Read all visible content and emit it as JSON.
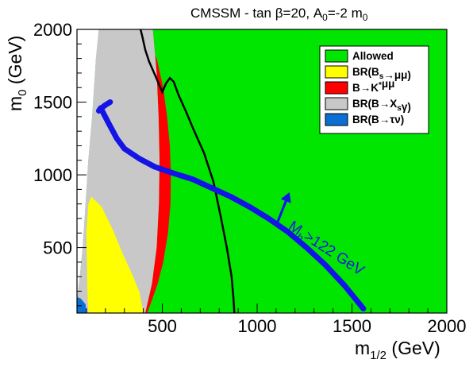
{
  "chart_data": {
    "type": "area",
    "title": {
      "pre": "CMSSM - tan ",
      "beta": "β",
      "mid": "=20, A",
      "a_sub": "0",
      "post": "=-2 m",
      "m_sub": "0"
    },
    "xlabel": {
      "base": "m",
      "sub": "1/2",
      "unit": " (GeV)"
    },
    "ylabel": {
      "base": "m",
      "sub": "0",
      "unit": " (GeV)"
    },
    "xlim": [
      50,
      2000
    ],
    "ylim": [
      50,
      2000
    ],
    "xticks": [
      500,
      1000,
      1500,
      2000
    ],
    "xtick_labels": [
      "500",
      "1000",
      "1500",
      "2000"
    ],
    "yticks": [
      500,
      1000,
      1500,
      2000
    ],
    "ytick_labels": [
      "500",
      "1000",
      "1500",
      "2000"
    ],
    "legend_position": "top-right",
    "legend": [
      {
        "id": "allowed",
        "parts": [
          {
            "t": "Allowed"
          }
        ],
        "color": "#00e600"
      },
      {
        "id": "bsmumu",
        "parts": [
          {
            "t": "BR(B"
          },
          {
            "t": "s",
            "sub": true
          },
          {
            "t": "→μμ)"
          }
        ],
        "color": "#ffff00"
      },
      {
        "id": "bkmumu",
        "parts": [
          {
            "t": "B→K"
          },
          {
            "t": "*",
            "sup": true
          },
          {
            "t": "μμ"
          }
        ],
        "color": "#ff0000"
      },
      {
        "id": "bxsgamma",
        "parts": [
          {
            "t": "BR(B→X"
          },
          {
            "t": "s",
            "sub": true
          },
          {
            "t": "γ)"
          }
        ],
        "color": "#c8c8c8"
      },
      {
        "id": "btaunu",
        "parts": [
          {
            "t": "BR(B→τν)"
          }
        ],
        "color": "#0a6ed2"
      }
    ],
    "regions": {
      "excluded_white": [
        [
          50,
          2000
        ],
        [
          165,
          2000
        ],
        [
          150,
          1800
        ],
        [
          130,
          1400
        ],
        [
          110,
          1100
        ],
        [
          95,
          800
        ],
        [
          80,
          500
        ],
        [
          65,
          300
        ],
        [
          50,
          150
        ]
      ],
      "bxsgamma": [
        [
          165,
          2000
        ],
        [
          450,
          2000
        ],
        [
          470,
          1700
        ],
        [
          480,
          1400
        ],
        [
          485,
          1100
        ],
        [
          482,
          800
        ],
        [
          470,
          500
        ],
        [
          445,
          250
        ],
        [
          410,
          50
        ],
        [
          50,
          50
        ],
        [
          50,
          150
        ],
        [
          65,
          300
        ],
        [
          80,
          500
        ],
        [
          95,
          800
        ],
        [
          110,
          1100
        ],
        [
          130,
          1400
        ],
        [
          150,
          1800
        ]
      ],
      "bkmumu_band": {
        "outer": [
          [
            395,
            2000
          ],
          [
            420,
            1950
          ],
          [
            470,
            1800
          ],
          [
            505,
            1600
          ],
          [
            525,
            1400
          ],
          [
            540,
            1200
          ],
          [
            545,
            1000
          ],
          [
            543,
            800
          ],
          [
            530,
            600
          ],
          [
            505,
            400
          ],
          [
            475,
            250
          ],
          [
            440,
            120
          ],
          [
            420,
            50
          ]
        ],
        "inner": [
          [
            410,
            50
          ],
          [
            445,
            250
          ],
          [
            470,
            500
          ],
          [
            482,
            800
          ],
          [
            485,
            1100
          ],
          [
            480,
            1400
          ],
          [
            470,
            1700
          ],
          [
            450,
            2000
          ]
        ]
      },
      "bsmumu": [
        [
          125,
          850
        ],
        [
          180,
          780
        ],
        [
          240,
          620
        ],
        [
          290,
          460
        ],
        [
          340,
          320
        ],
        [
          380,
          190
        ],
        [
          400,
          50
        ],
        [
          110,
          50
        ],
        [
          105,
          200
        ],
        [
          100,
          600
        ],
        [
          110,
          800
        ]
      ],
      "btaunu": [
        [
          50,
          50
        ],
        [
          100,
          50
        ],
        [
          95,
          110
        ],
        [
          70,
          150
        ],
        [
          50,
          160
        ]
      ]
    },
    "series": [
      {
        "id": "higgs_contour",
        "color": "#1414e6",
        "x": [
          225,
          200,
          185,
          175,
          165,
          175,
          215,
          260,
          300,
          380,
          460,
          560,
          660,
          760,
          860,
          960,
          1060,
          1160,
          1260,
          1360,
          1460,
          1560
        ],
        "y": [
          1500,
          1480,
          1465,
          1455,
          1440,
          1460,
          1360,
          1250,
          1180,
          1110,
          1055,
          1010,
          970,
          910,
          850,
          780,
          700,
          610,
          500,
          380,
          240,
          80
        ]
      },
      {
        "id": "black_contour",
        "color": "#000000",
        "x": [
          385,
          395,
          410,
          430,
          450,
          470,
          490,
          500,
          520,
          540,
          560,
          585,
          620,
          665,
          720,
          770,
          810,
          840,
          865,
          875,
          880
        ],
        "y": [
          2000,
          1950,
          1860,
          1780,
          1720,
          1660,
          1600,
          1570,
          1630,
          1665,
          1640,
          1550,
          1450,
          1310,
          1150,
          950,
          700,
          500,
          300,
          150,
          50
        ]
      }
    ],
    "annotation": {
      "base": "M",
      "sub": "h",
      "rest": ">122 GeV",
      "arrow_from": [
        1100,
        650
      ],
      "arrow_to": [
        1170,
        880
      ],
      "text_at": [
        1160,
        630
      ],
      "rotation_deg": 33
    }
  }
}
